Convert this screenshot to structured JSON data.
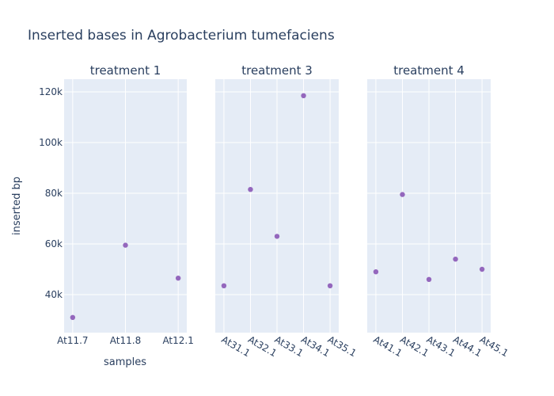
{
  "chart_data": {
    "type": "scatter",
    "title": "Inserted bases in Agrobacterium tumefaciens",
    "xlabel": "samples",
    "ylabel": "inserted bp",
    "ylim": [
      25000,
      125000
    ],
    "y_ticks": [
      40000,
      60000,
      80000,
      100000,
      120000
    ],
    "y_tick_labels": [
      "40k",
      "60k",
      "80k",
      "100k",
      "120k"
    ],
    "grid": true,
    "marker_color": "#9467bd",
    "panels": [
      {
        "title": "treatment 1",
        "categories": [
          "At11.7",
          "At11.8",
          "At12.1"
        ],
        "values": [
          31000,
          59500,
          46500
        ]
      },
      {
        "title": "treatment 3",
        "categories": [
          "At31.1",
          "At32.1",
          "At33.1",
          "At34.1",
          "At35.1"
        ],
        "values": [
          43500,
          81500,
          63000,
          118500,
          43500
        ]
      },
      {
        "title": "treatment 4",
        "categories": [
          "At41.1",
          "At42.1",
          "At43.1",
          "At44.1",
          "At45.1"
        ],
        "values": [
          49000,
          79500,
          46000,
          54000,
          50000
        ]
      }
    ]
  },
  "colors": {
    "plot_bg": "#e5ecf6",
    "grid": "#ffffff",
    "text": "#2a3f5f"
  }
}
